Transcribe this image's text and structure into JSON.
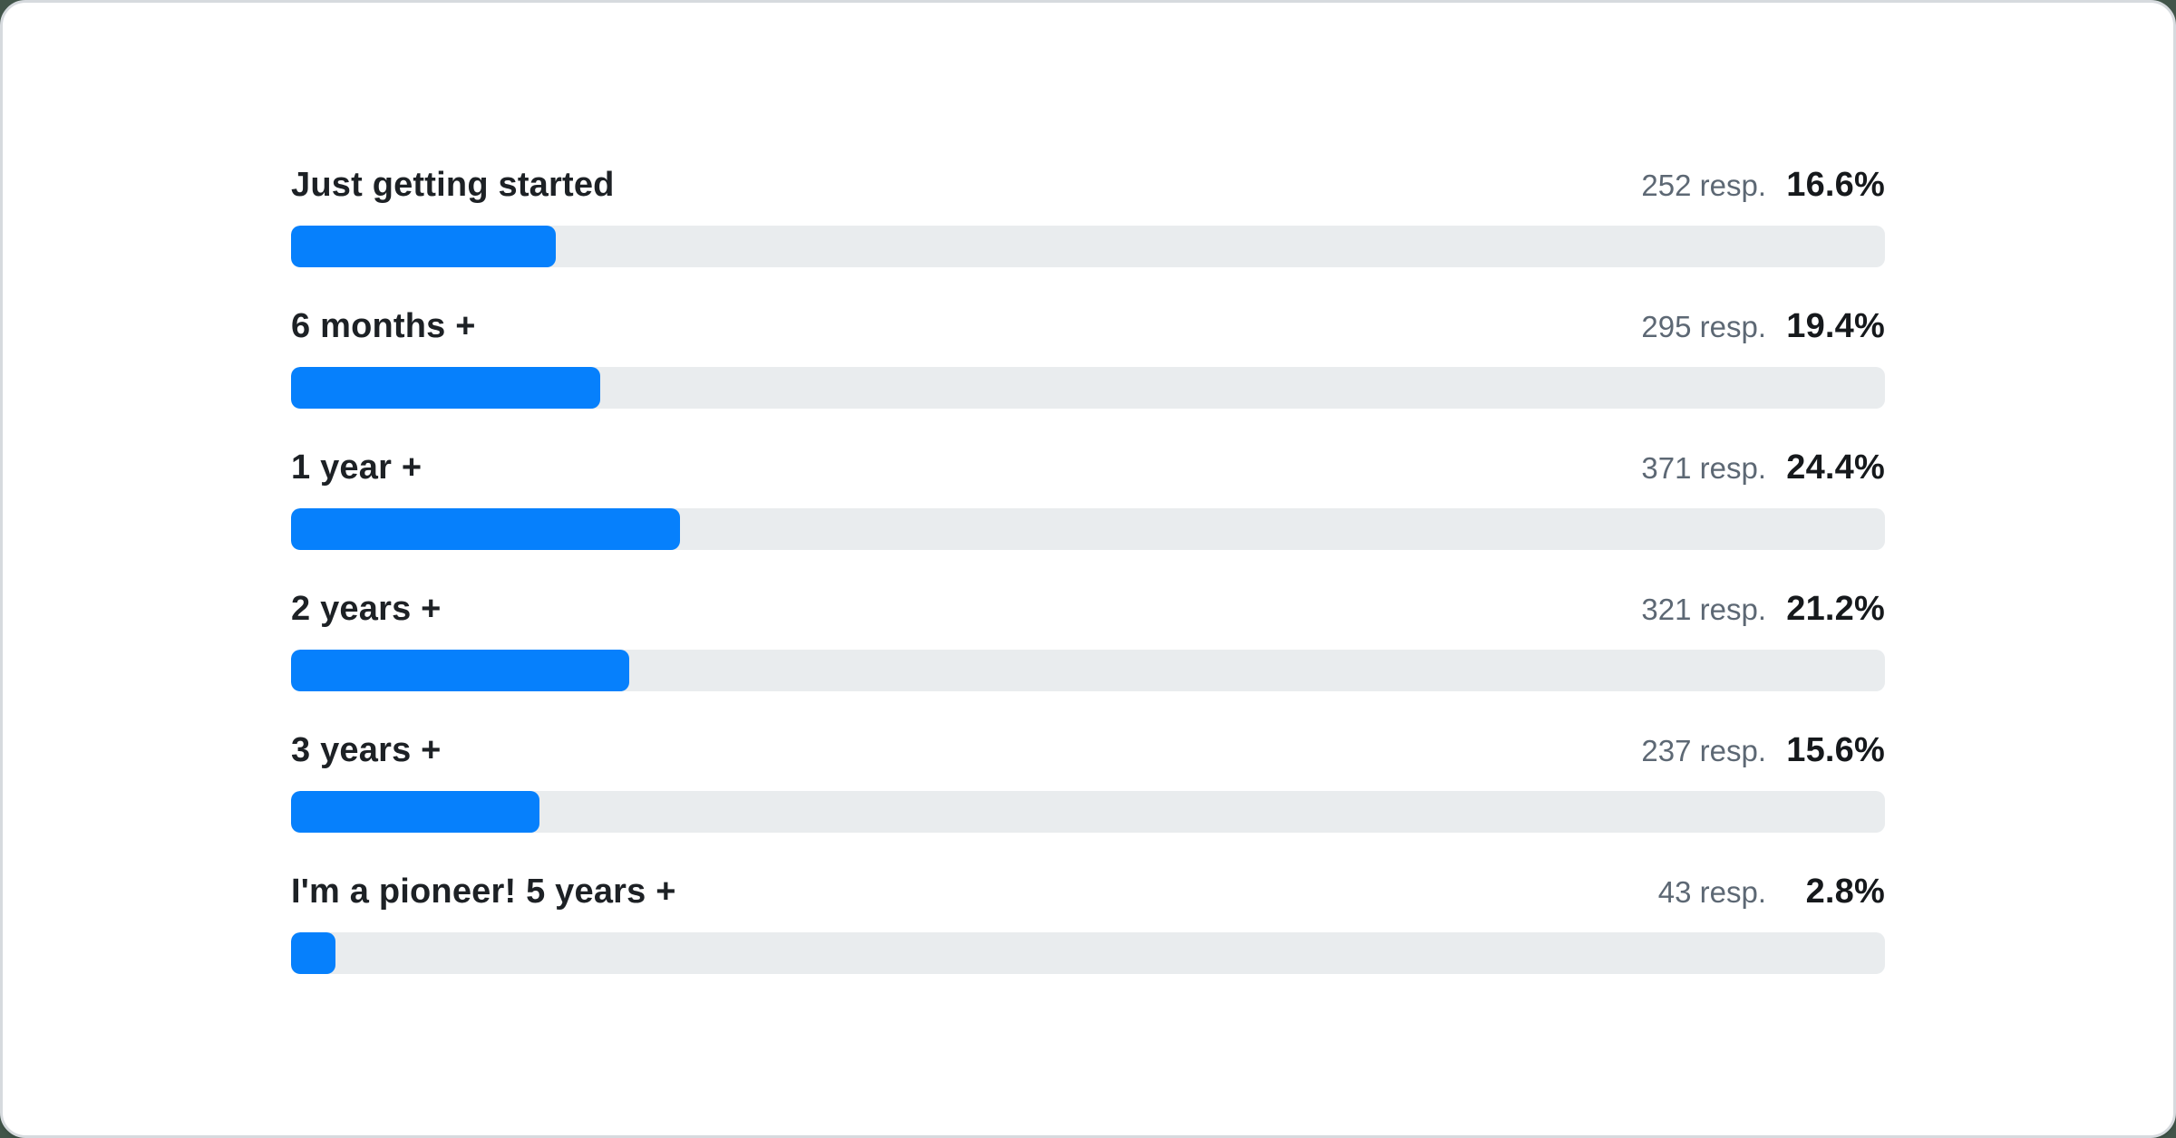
{
  "colors": {
    "bar_fill": "#0680fc",
    "bar_track": "#e9ecee",
    "label_text": "#1d2125",
    "resp_text": "#5d6874",
    "pct_text": "#16191c",
    "card_border": "#d6dade",
    "card_background": "#ffffff"
  },
  "rows": [
    {
      "label": "Just getting started",
      "resp": "252 resp.",
      "pct": "16.6%",
      "bar_width": "16.6%"
    },
    {
      "label": "6 months +",
      "resp": "295 resp.",
      "pct": "19.4%",
      "bar_width": "19.4%"
    },
    {
      "label": "1 year +",
      "resp": "371 resp.",
      "pct": "24.4%",
      "bar_width": "24.4%"
    },
    {
      "label": "2 years +",
      "resp": "321 resp.",
      "pct": "21.2%",
      "bar_width": "21.2%"
    },
    {
      "label": "3 years +",
      "resp": "237 resp.",
      "pct": "15.6%",
      "bar_width": "15.6%"
    },
    {
      "label": "I'm a pioneer! 5 years +",
      "resp": "43 resp.",
      "pct": "2.8%",
      "bar_width": "2.8%"
    }
  ],
  "chart_data": {
    "type": "bar",
    "orientation": "horizontal",
    "categories": [
      "Just getting started",
      "6 months +",
      "1 year +",
      "2 years +",
      "3 years +",
      "I'm a pioneer! 5 years +"
    ],
    "series": [
      {
        "name": "respondents",
        "values": [
          252,
          295,
          371,
          321,
          237,
          43
        ]
      },
      {
        "name": "percent",
        "values": [
          16.6,
          19.4,
          24.4,
          21.2,
          15.6,
          2.8
        ]
      }
    ],
    "value_label_format": "{respondents} resp.  {percent}%",
    "title": "",
    "xlabel": "",
    "ylabel": "",
    "xlim": [
      0,
      100
    ],
    "grid": false,
    "legend": false,
    "bar_color": "#0680fc",
    "track_color": "#e9ecee"
  }
}
